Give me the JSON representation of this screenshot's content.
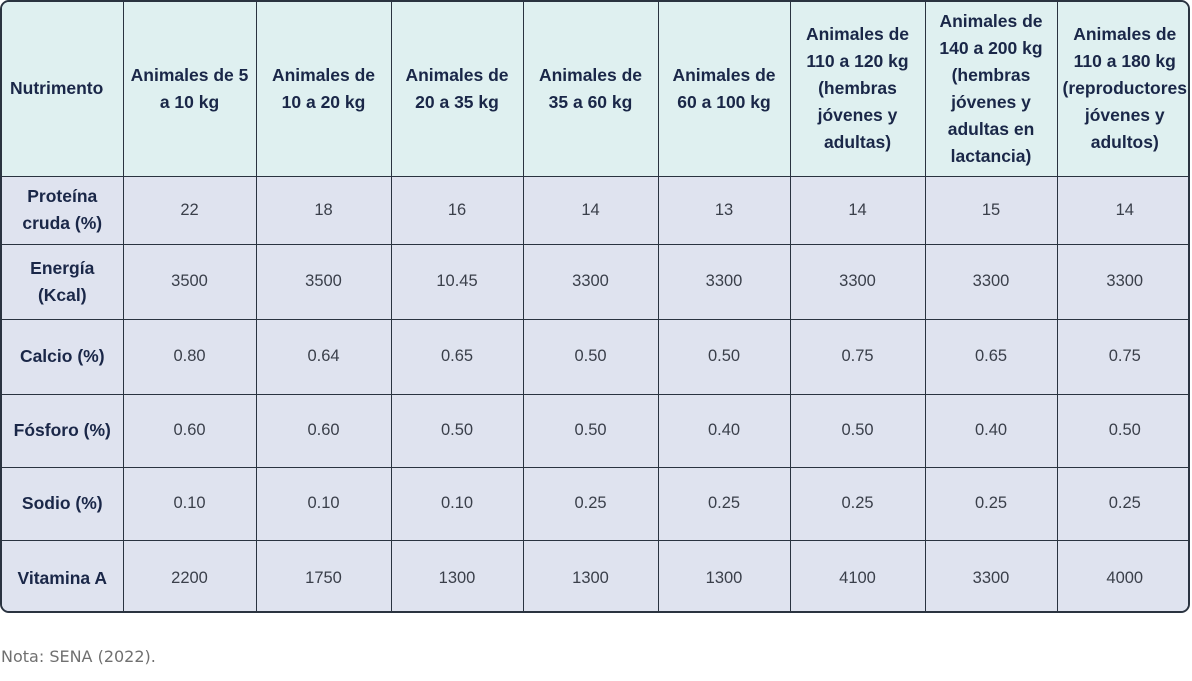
{
  "table": {
    "headers": [
      "Nutrimento",
      "Animales de 5 a 10 kg",
      "Animales de 10 a 20 kg",
      "Animales de 20 a 35 kg",
      "Animales de 35 a 60 kg",
      "Animales de 60 a 100 kg",
      "Animales de 110 a 120 kg (hembras jóvenes y adultas)",
      "Animales de 140 a 200 kg (hembras jóvenes y adultas en lactancia)",
      "Animales de 110 a 180 kg (reproductores jóvenes y adultos)"
    ],
    "rows": [
      {
        "label": "Proteína cruda (%)",
        "values": [
          "22",
          "18",
          "16",
          "14",
          "13",
          "14",
          "15",
          "14"
        ]
      },
      {
        "label": "Energía (Kcal)",
        "values": [
          "3500",
          "3500",
          "10.45",
          "3300",
          "3300",
          "3300",
          "3300",
          "3300"
        ]
      },
      {
        "label": "Calcio (%)",
        "values": [
          "0.80",
          "0.64",
          "0.65",
          "0.50",
          "0.50",
          "0.75",
          "0.65",
          "0.75"
        ]
      },
      {
        "label": "Fósforo (%)",
        "values": [
          "0.60",
          "0.60",
          "0.50",
          "0.50",
          "0.40",
          "0.50",
          "0.40",
          "0.50"
        ]
      },
      {
        "label": "Sodio (%)",
        "values": [
          "0.10",
          "0.10",
          "0.10",
          "0.25",
          "0.25",
          "0.25",
          "0.25",
          "0.25"
        ]
      },
      {
        "label": "Vitamina A",
        "values": [
          "2200",
          "1750",
          "1300",
          "1300",
          "1300",
          "4100",
          "3300",
          "4000"
        ]
      }
    ]
  },
  "note": "Nota: SENA (2022).",
  "colors": {
    "header_bg": "#dff0f0",
    "body_bg": "#dfe3ef",
    "border": "#2a3340",
    "header_text": "#1a2748",
    "note_text": "#707070"
  }
}
